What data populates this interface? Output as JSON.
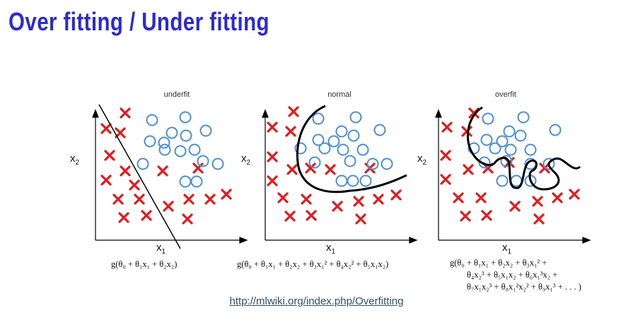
{
  "slide": {
    "title": "Over fitting / Under fitting",
    "source_link": "http://mlwiki.org/index.php/Overfitting"
  },
  "axis_labels": {
    "x": "x",
    "x_sub": "1",
    "y": "x",
    "y_sub": "2"
  },
  "colors": {
    "title": "#2b2bd6",
    "cross": "#e41a1c",
    "circle": "#4a90d9",
    "boundary": "#000000"
  },
  "panels": [
    {
      "id": "underfit",
      "title": "underfit",
      "formula_lines": [
        "g(θ₀ + θ₁x₁ + θ₂x₂)"
      ]
    },
    {
      "id": "normal",
      "title": "normal",
      "formula_lines": [
        "g(θ₀ + θ₁x₁ + θ₂x₂ + θ₃x₁² + θ₄x₂² + θ₅x₁x₂)"
      ]
    },
    {
      "id": "overfit",
      "title": "overfit",
      "formula_lines": [
        "g(θ₀ + θ₁x₁ + θ₂x₂ + θ₃x₁² +",
        "θ₄x₂³ + θ₅x₁x₂ + θ₆x₁³x₂ +",
        "θ₇x₁x₂³ + θ₈x₁²x₂² + θ₉x₁³ + . . . )"
      ]
    }
  ]
}
